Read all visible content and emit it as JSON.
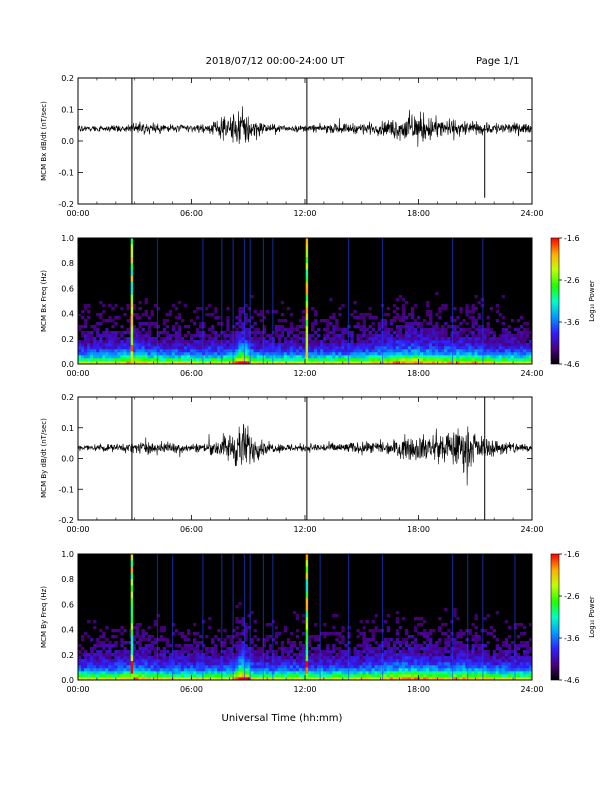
{
  "header": {
    "title": "2018/07/12  00:00-24:00 UT",
    "page": "Page 1/1"
  },
  "chart_data": [
    {
      "type": "line",
      "panel": "bx-waveform",
      "ylabel": "MCM Bx dB/dt (nT/sec)",
      "ylim": [
        -0.2,
        0.2
      ],
      "yticks": [
        "0.2",
        "0.1",
        "0.0",
        "-0.1",
        "-0.2"
      ],
      "xlim": [
        0,
        24
      ],
      "xticks": [
        "00:00",
        "06:00",
        "12:00",
        "18:00",
        "24:00"
      ],
      "baseline": 0.04,
      "activity_envelope": {
        "hours": [
          0,
          2,
          3.5,
          5,
          6,
          6.8,
          7.5,
          8.2,
          8.6,
          9.0,
          9.4,
          10,
          11,
          12,
          13,
          14,
          15,
          16,
          16.8,
          17.5,
          18,
          19,
          20,
          21,
          22,
          23,
          24
        ],
        "amplitude": [
          0.012,
          0.015,
          0.03,
          0.022,
          0.018,
          0.02,
          0.04,
          0.07,
          0.1,
          0.08,
          0.05,
          0.02,
          0.015,
          0.015,
          0.02,
          0.022,
          0.025,
          0.03,
          0.05,
          0.07,
          0.075,
          0.05,
          0.04,
          0.03,
          0.03,
          0.025,
          0.02
        ]
      },
      "spikes": [
        {
          "hour": 2.85,
          "min": -0.22,
          "max": 0.2
        },
        {
          "hour": 12.1,
          "min": -0.2,
          "max": 0.2
        },
        {
          "hour": 21.5,
          "min": -0.18,
          "max": 0.05
        }
      ]
    },
    {
      "type": "heatmap",
      "panel": "bx-spectrogram",
      "ylabel": "MCM Bx Freq (Hz)",
      "ylim": [
        0,
        1.0
      ],
      "yticks": [
        "1.0",
        "0.8",
        "0.6",
        "0.4",
        "0.2",
        "0.0"
      ],
      "xlim": [
        0,
        24
      ],
      "xticks": [
        "00:00",
        "06:00",
        "12:00",
        "18:00",
        "24:00"
      ],
      "colorbar_label": "Log₁₀ Power",
      "color_range": [
        -4.6,
        -1.6
      ],
      "colorbar_ticks": [
        "-1.6",
        "-2.6",
        "-3.6",
        "-4.6"
      ],
      "bright_stripes": [
        2.85,
        12.1
      ],
      "faint_stripes": [
        4.2,
        6.6,
        7.6,
        8.2,
        8.8,
        9.1,
        9.8,
        10.3,
        14.3,
        16.1,
        19.8,
        21.4
      ]
    },
    {
      "type": "line",
      "panel": "by-waveform",
      "ylabel": "MCM By dB/dt (nT/sec)",
      "ylim": [
        -0.2,
        0.2
      ],
      "yticks": [
        "0.2",
        "0.1",
        "0.0",
        "-0.1",
        "-0.2"
      ],
      "xlim": [
        0,
        24
      ],
      "xticks": [
        "00:00",
        "06:00",
        "12:00",
        "18:00",
        "24:00"
      ],
      "baseline": 0.035,
      "activity_envelope": {
        "hours": [
          0,
          2,
          3.5,
          5,
          6,
          6.8,
          7.5,
          8.2,
          8.6,
          9.0,
          9.4,
          10,
          11,
          12,
          13,
          14,
          15,
          16,
          16.8,
          17.5,
          18,
          19,
          20,
          20.5,
          21,
          22,
          23,
          24
        ],
        "amplitude": [
          0.015,
          0.018,
          0.03,
          0.025,
          0.02,
          0.025,
          0.05,
          0.08,
          0.12,
          0.1,
          0.06,
          0.025,
          0.02,
          0.02,
          0.022,
          0.025,
          0.025,
          0.03,
          0.04,
          0.06,
          0.06,
          0.07,
          0.09,
          0.1,
          0.06,
          0.04,
          0.03,
          0.02
        ]
      },
      "spikes": [
        {
          "hour": 2.85,
          "min": -0.2,
          "max": 0.2
        },
        {
          "hour": 12.1,
          "min": -0.2,
          "max": 0.2
        },
        {
          "hour": 21.5,
          "min": -0.2,
          "max": 0.2
        }
      ]
    },
    {
      "type": "heatmap",
      "panel": "by-spectrogram",
      "ylabel": "MCM By Freq (Hz)",
      "ylim": [
        0,
        1.0
      ],
      "yticks": [
        "1.0",
        "0.8",
        "0.6",
        "0.4",
        "0.2",
        "0.0"
      ],
      "xlim": [
        0,
        24
      ],
      "xticks": [
        "00:00",
        "06:00",
        "12:00",
        "18:00",
        "24:00"
      ],
      "colorbar_label": "Log₁₀ Power",
      "color_range": [
        -4.6,
        -1.6
      ],
      "colorbar_ticks": [
        "-1.6",
        "-2.6",
        "-3.6",
        "-4.6"
      ],
      "bright_stripes": [
        2.85,
        12.1
      ],
      "faint_stripes": [
        4.2,
        5.0,
        6.6,
        7.6,
        8.2,
        8.8,
        9.1,
        9.8,
        10.3,
        12.8,
        14.3,
        16.1,
        19.8,
        20.6,
        21.4,
        23.1
      ]
    }
  ],
  "footer": {
    "xlabel": "Universal Time (hh:mm)"
  }
}
